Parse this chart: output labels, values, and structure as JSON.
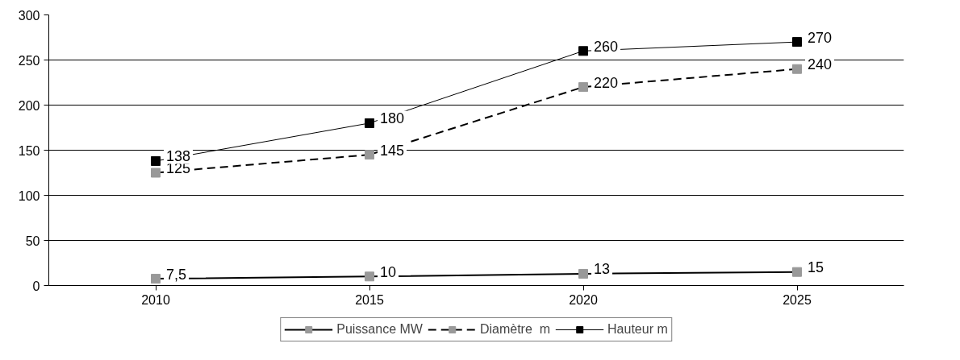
{
  "chart_data": {
    "type": "line",
    "categories": [
      "2010",
      "2015",
      "2020",
      "2025"
    ],
    "series": [
      {
        "name": "Puissance MW",
        "color": "#000000",
        "colors": [
          "#999999",
          "#999999",
          "#999999",
          "#999999"
        ],
        "line_style": "solid",
        "values": [
          7.5,
          10,
          13,
          15
        ],
        "value_labels": [
          "7,5",
          "10",
          "13",
          "15"
        ]
      },
      {
        "name": "Diamètre  m",
        "color": "#000000",
        "colors": [
          "#999999",
          "#999999",
          "#999999",
          "#999999"
        ],
        "line_style": "dashed",
        "values": [
          125,
          145,
          220,
          240
        ],
        "value_labels": [
          "125",
          "145",
          "220",
          "240"
        ]
      },
      {
        "name": "Hauteur m",
        "color": "#000000",
        "colors": [
          "#000000",
          "#000000",
          "#000000",
          "#000000"
        ],
        "line_style": "solid",
        "values": [
          138,
          180,
          260,
          270
        ],
        "value_labels": [
          "138",
          "180",
          "260",
          "270"
        ]
      }
    ],
    "ylim": [
      0,
      300
    ],
    "yticks": [
      0,
      50,
      100,
      150,
      200,
      250,
      300
    ],
    "grid": "y",
    "legend": "bottom",
    "marker": "square"
  }
}
